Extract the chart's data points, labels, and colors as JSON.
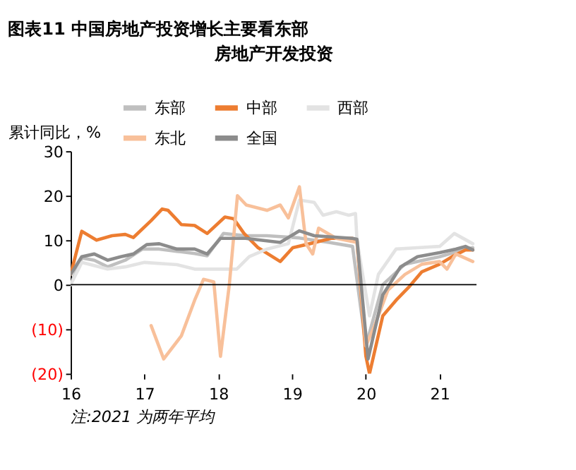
{
  "chart_data": {
    "type": "line",
    "title": "图表11   中国房地产投资增长主要看东部",
    "subtitle": "房地产开发投资",
    "ylabel": "累计同比，%",
    "annotations": [
      "注:2021 为两年平均"
    ],
    "xlim": [
      16,
      21.5
    ],
    "xticks": [
      16,
      17,
      18,
      19,
      20,
      21
    ],
    "ylim": [
      -20,
      30
    ],
    "yticks": [
      {
        "value": -20,
        "label": "(20)"
      },
      {
        "value": -10,
        "label": "(10)"
      },
      0,
      10,
      20,
      30
    ],
    "grid": false,
    "ref_lines": [
      {
        "axis": "y",
        "value": 0,
        "color": "#000000"
      }
    ],
    "legend": "top",
    "marker": "none",
    "line_style": "solid",
    "series": [
      {
        "name": "东部",
        "color": "#bfbfbf",
        "x": [
          16,
          16.15,
          16.32,
          16.5,
          16.74,
          16.97,
          17.2,
          17.44,
          17.68,
          17.85,
          18.07,
          18.37,
          18.66,
          19.1,
          19.5,
          19.82,
          20.0,
          20.23,
          20.53,
          21.0,
          21.35,
          21.45
        ],
        "values": [
          0,
          6,
          5.5,
          4,
          5.5,
          8,
          8,
          7.5,
          7,
          6.5,
          11.5,
          11,
          11,
          10.5,
          9.5,
          8.6,
          -13.8,
          0,
          4.6,
          6.3,
          8,
          8.3
        ]
      },
      {
        "name": "中部",
        "color": "#ed7d31",
        "x": [
          16,
          16.15,
          16.35,
          16.56,
          16.74,
          16.85,
          17.09,
          17.24,
          17.32,
          17.5,
          17.68,
          17.85,
          18.09,
          18.21,
          18.35,
          18.54,
          18.84,
          19.01,
          19.24,
          19.53,
          19.82,
          19.88,
          20.0,
          20.05,
          20.23,
          20.41,
          20.58,
          20.76,
          21.0,
          21.17,
          21.35,
          21.45
        ],
        "values": [
          2.3,
          12,
          10,
          11,
          11.3,
          10.6,
          14.4,
          17,
          16.7,
          13.5,
          13.3,
          11.5,
          15.2,
          14.8,
          11.5,
          8.3,
          5.2,
          8.3,
          9.2,
          10.4,
          10.4,
          10,
          -16,
          -20,
          -7,
          -3.5,
          -0.6,
          2.9,
          4.6,
          6.3,
          7.8,
          7.8
        ]
      },
      {
        "name": "西部",
        "color": "#e3e3e3",
        "x": [
          16,
          16.15,
          16.5,
          16.74,
          17.0,
          17.44,
          17.68,
          17.97,
          18.25,
          18.42,
          18.66,
          18.95,
          19.1,
          19.3,
          19.42,
          19.6,
          19.77,
          19.86,
          19.88,
          20.05,
          20.17,
          20.41,
          20.7,
          21.0,
          21.2,
          21.45
        ],
        "values": [
          0,
          5,
          3.5,
          4,
          5,
          4.5,
          3.5,
          3.5,
          3.5,
          6.3,
          8,
          9.2,
          19,
          18.5,
          15.6,
          16.4,
          15.6,
          16,
          10,
          -7,
          2.3,
          8,
          8.3,
          8.6,
          11.5,
          9.2
        ]
      },
      {
        "name": "东北",
        "color": "#f8c09a",
        "x": [
          17.09,
          17.26,
          17.5,
          17.68,
          17.8,
          17.94,
          18.03,
          18.15,
          18.26,
          18.38,
          18.66,
          18.84,
          18.95,
          19.1,
          19.19,
          19.28,
          19.36,
          19.6,
          19.88,
          20.0,
          20.12,
          20.3,
          20.53,
          20.76,
          21.0,
          21.1,
          21.22,
          21.45
        ],
        "values": [
          -9.2,
          -16.7,
          -11.5,
          -3.5,
          1.2,
          0.6,
          -16.1,
          0,
          20,
          17.9,
          16.7,
          17.9,
          15,
          22,
          9.2,
          6.9,
          12.7,
          10.4,
          9.5,
          -13.8,
          -9.2,
          -1.2,
          2.3,
          4.6,
          5.2,
          3.5,
          6.9,
          5.2
        ]
      },
      {
        "name": "全国",
        "color": "#8c8c8c",
        "x": [
          16,
          16.15,
          16.32,
          16.5,
          16.68,
          16.85,
          17.03,
          17.2,
          17.44,
          17.68,
          17.85,
          18.03,
          18.26,
          18.37,
          18.84,
          19.1,
          19.3,
          19.82,
          19.88,
          20.03,
          20.23,
          20.47,
          20.7,
          21.0,
          21.22,
          21.35,
          21.45
        ],
        "values": [
          2.3,
          6.3,
          6.9,
          5.5,
          6.3,
          6.9,
          9,
          9.2,
          8,
          8,
          6.9,
          10.4,
          10.4,
          10.4,
          9.5,
          12.1,
          11,
          10.4,
          10.2,
          -16.7,
          -2.3,
          4,
          6.3,
          7.2,
          8,
          8.6,
          7.8
        ]
      }
    ]
  }
}
